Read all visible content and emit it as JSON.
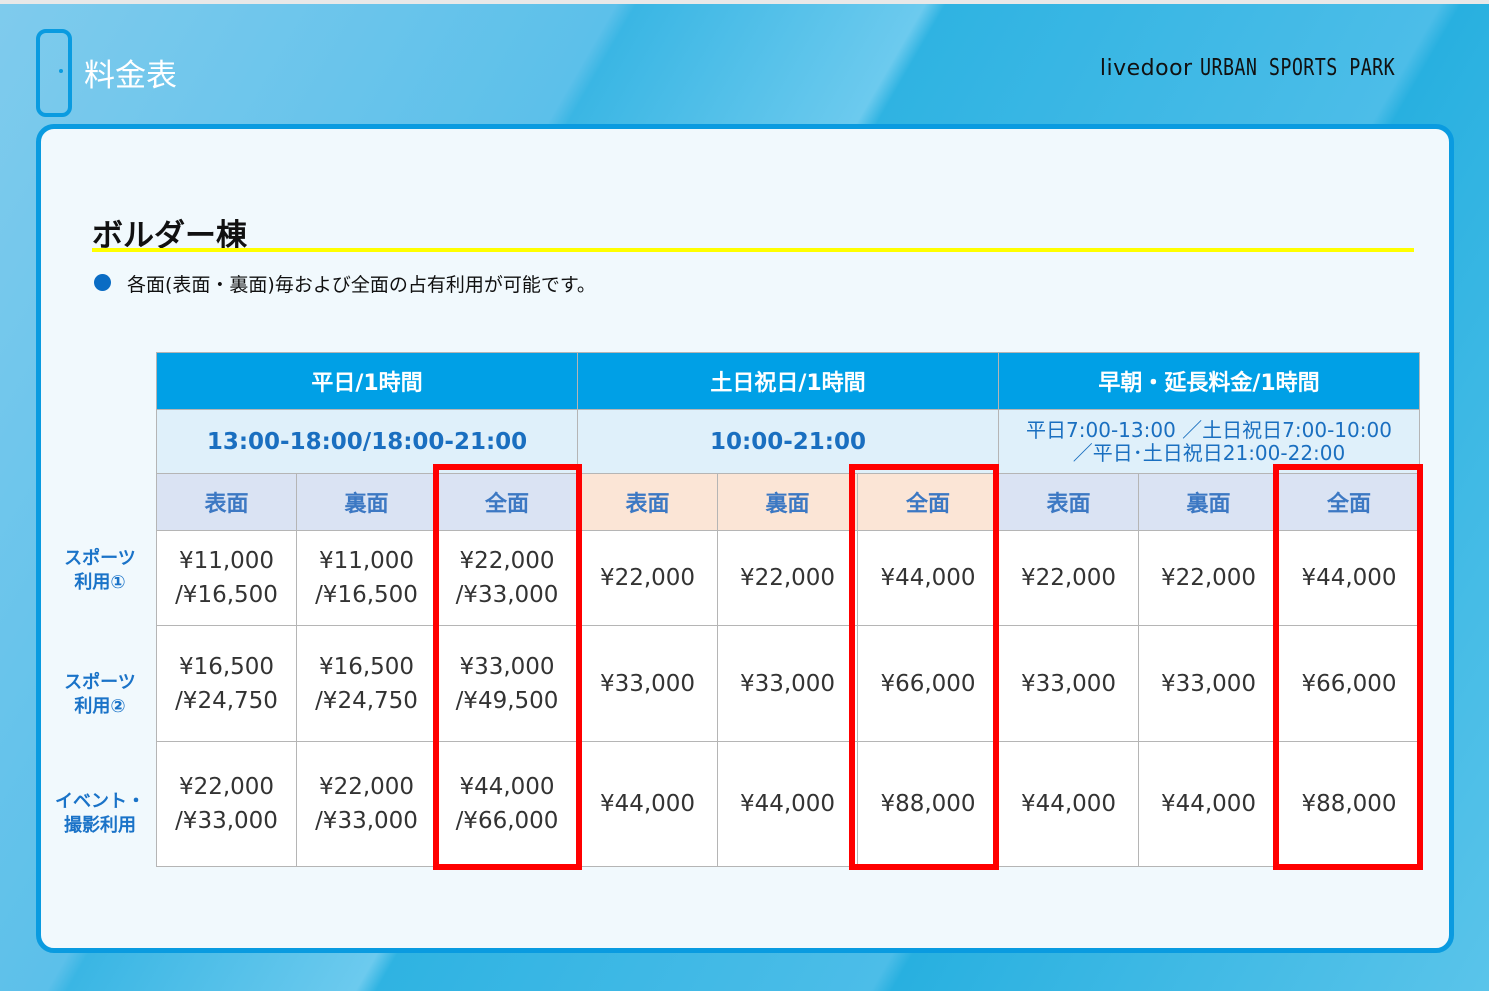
{
  "header": {
    "title": "料金表",
    "brand": "livedoor",
    "brand_bold": "URBAN SPORTS PARK"
  },
  "section": {
    "title": "ボルダー棟",
    "note": "各面(表面・裏面)毎および全面の占有利用が可能です。"
  },
  "table": {
    "groups": [
      {
        "label": "平日/1時間",
        "time": "13:00-18:00/18:00-21:00"
      },
      {
        "label": "土日祝日/1時間",
        "time": "10:00-21:00"
      },
      {
        "label": "早朝・延長料金/1時間",
        "time": "平日7:00-13:00 ／土日祝日7:00-10:00\n／平日･土日祝日21:00-22:00"
      }
    ],
    "subheaders": [
      "表面",
      "裏面",
      "全面",
      "表面",
      "裏面",
      "全面",
      "表面",
      "裏面",
      "全面"
    ],
    "rows": [
      {
        "label": "スポーツ\n利用①",
        "cells": [
          "¥11,000\n/¥16,500",
          "¥11,000\n/¥16,500",
          "¥22,000\n/¥33,000",
          "¥22,000",
          "¥22,000",
          "¥44,000",
          "¥22,000",
          "¥22,000",
          "¥44,000"
        ]
      },
      {
        "label": "スポーツ\n利用②",
        "cells": [
          "¥16,500\n/¥24,750",
          "¥16,500\n/¥24,750",
          "¥33,000\n/¥49,500",
          "¥33,000",
          "¥33,000",
          "¥66,000",
          "¥33,000",
          "¥33,000",
          "¥66,000"
        ]
      },
      {
        "label": "イベント・\n撮影利用",
        "cells": [
          "¥22,000\n/¥33,000",
          "¥22,000\n/¥33,000",
          "¥44,000\n/¥66,000",
          "¥44,000",
          "¥44,000",
          "¥88,000",
          "¥44,000",
          "¥44,000",
          "¥88,000"
        ]
      }
    ]
  },
  "colors": {
    "header_bg": "#00a0e6",
    "highlight": "#ff0000",
    "subheader_blue": "#dae3f3",
    "subheader_orange": "#fbe5d6",
    "underline": "#ffff00"
  }
}
